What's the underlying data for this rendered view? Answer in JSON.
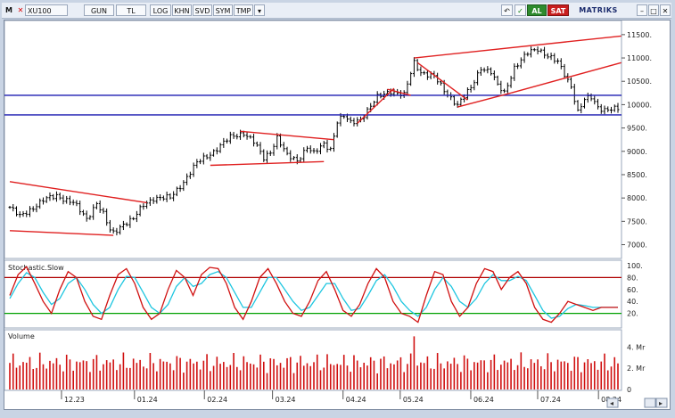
{
  "toolbar": {
    "menu_label": "M",
    "symbol": "XU100",
    "period": "GUN",
    "currency": "TL",
    "scale_btn": "LOG",
    "buttons": [
      "KHN",
      "SVD",
      "SYM",
      "TMP"
    ],
    "buy_label": "AL",
    "sell_label": "SAT",
    "brand": "MATRIKS"
  },
  "colors": {
    "price": "#000000",
    "trendline": "#e02020",
    "level": "#1a1ab0",
    "stoch_k": "#d01010",
    "stoch_d": "#1ec6e0",
    "stoch_upper": "#b00000",
    "stoch_lower": "#00a000",
    "volume": "#d01010"
  },
  "chart_data": [
    {
      "type": "ohlc",
      "panel": "price",
      "x_labels": [
        "12.23",
        "01.24",
        "02.24",
        "03.24",
        "04.24",
        "05.24",
        "06.24",
        "07.24",
        "08.24"
      ],
      "y_ticks": [
        7000,
        7500,
        8000,
        8500,
        9000,
        9500,
        10000,
        10500,
        11000,
        11500
      ],
      "y_tick_labels": [
        "7000.",
        "7500.",
        "8000.",
        "8500.",
        "9000.",
        "9500.",
        "10000.",
        "10500.",
        "11000.",
        "11500."
      ],
      "ylim": [
        6800,
        11650
      ],
      "bar_count": 183,
      "close_anchors": [
        {
          "bar": 0,
          "close": 7800
        },
        {
          "bar": 3,
          "close": 7600
        },
        {
          "bar": 10,
          "close": 7950
        },
        {
          "bar": 14,
          "close": 8050
        },
        {
          "bar": 19,
          "close": 7900
        },
        {
          "bar": 23,
          "close": 7550
        },
        {
          "bar": 26,
          "close": 7900
        },
        {
          "bar": 28,
          "close": 7650
        },
        {
          "bar": 30,
          "close": 7300
        },
        {
          "bar": 31,
          "close": 7250
        },
        {
          "bar": 34,
          "close": 7450
        },
        {
          "bar": 37,
          "close": 7550
        },
        {
          "bar": 40,
          "close": 7850
        },
        {
          "bar": 43,
          "close": 8000
        },
        {
          "bar": 48,
          "close": 8000
        },
        {
          "bar": 52,
          "close": 8350
        },
        {
          "bar": 56,
          "close": 8750
        },
        {
          "bar": 61,
          "close": 9000
        },
        {
          "bar": 66,
          "close": 9300
        },
        {
          "bar": 70,
          "close": 9400
        },
        {
          "bar": 73,
          "close": 9200
        },
        {
          "bar": 76,
          "close": 8850
        },
        {
          "bar": 78,
          "close": 9000
        },
        {
          "bar": 80,
          "close": 9300
        },
        {
          "bar": 83,
          "close": 8900
        },
        {
          "bar": 86,
          "close": 8800
        },
        {
          "bar": 89,
          "close": 9100
        },
        {
          "bar": 91,
          "close": 8950
        },
        {
          "bar": 94,
          "close": 9150
        },
        {
          "bar": 96,
          "close": 9050
        },
        {
          "bar": 98,
          "close": 9650
        },
        {
          "bar": 100,
          "close": 9750
        },
        {
          "bar": 102,
          "close": 9600
        },
        {
          "bar": 105,
          "close": 9700
        },
        {
          "bar": 110,
          "close": 10150
        },
        {
          "bar": 114,
          "close": 10300
        },
        {
          "bar": 118,
          "close": 10200
        },
        {
          "bar": 121,
          "close": 10900
        },
        {
          "bar": 123,
          "close": 10700
        },
        {
          "bar": 127,
          "close": 10600
        },
        {
          "bar": 130,
          "close": 10300
        },
        {
          "bar": 134,
          "close": 10000
        },
        {
          "bar": 138,
          "close": 10350
        },
        {
          "bar": 141,
          "close": 10800
        },
        {
          "bar": 144,
          "close": 10700
        },
        {
          "bar": 146,
          "close": 10400
        },
        {
          "bar": 148,
          "close": 10250
        },
        {
          "bar": 151,
          "close": 10800
        },
        {
          "bar": 155,
          "close": 11100
        },
        {
          "bar": 158,
          "close": 11200
        },
        {
          "bar": 161,
          "close": 11050
        },
        {
          "bar": 164,
          "close": 10900
        },
        {
          "bar": 166,
          "close": 10650
        },
        {
          "bar": 168,
          "close": 10400
        },
        {
          "bar": 170,
          "close": 9850
        },
        {
          "bar": 172,
          "close": 10100
        },
        {
          "bar": 174,
          "close": 10150
        },
        {
          "bar": 176,
          "close": 9950
        },
        {
          "bar": 178,
          "close": 9900
        },
        {
          "bar": 182,
          "close": 9900
        }
      ],
      "horizontal_levels": [
        10200,
        9780
      ],
      "trendlines": [
        {
          "from": {
            "bar": 0,
            "value": 8350
          },
          "to": {
            "bar": 41,
            "value": 7900
          }
        },
        {
          "from": {
            "bar": 0,
            "value": 7300
          },
          "to": {
            "bar": 31,
            "value": 7200
          }
        },
        {
          "from": {
            "bar": 60,
            "value": 8700
          },
          "to": {
            "bar": 94,
            "value": 8780
          }
        },
        {
          "from": {
            "bar": 69,
            "value": 9430
          },
          "to": {
            "bar": 97,
            "value": 9250
          }
        },
        {
          "from": {
            "bar": 104,
            "value": 9600
          },
          "to": {
            "bar": 115,
            "value": 10350
          }
        },
        {
          "from": {
            "bar": 113,
            "value": 10330
          },
          "to": {
            "bar": 120,
            "value": 10200
          }
        },
        {
          "from": {
            "bar": 121,
            "value": 11000
          },
          "to": {
            "bar": 183,
            "value": 11470
          }
        },
        {
          "from": {
            "bar": 134,
            "value": 9950
          },
          "to": {
            "bar": 150,
            "value": 10250
          }
        },
        {
          "from": {
            "bar": 150,
            "value": 10250
          },
          "to": {
            "bar": 183,
            "value": 10900
          }
        },
        {
          "from": {
            "bar": 122,
            "value": 10900
          },
          "to": {
            "bar": 137,
            "value": 10100
          }
        }
      ]
    },
    {
      "type": "line",
      "panel": "stochastic",
      "title": "Stochastic.Slow",
      "y_ticks": [
        20,
        40,
        60,
        80,
        100
      ],
      "y_tick_labels": [
        "20.",
        "40.",
        "60.",
        "80.",
        "100."
      ],
      "ylim": [
        0,
        100
      ],
      "reference_lines": [
        80,
        20
      ],
      "series": [
        {
          "values": [
            50,
            85,
            98,
            70,
            40,
            20,
            60,
            90,
            80,
            40,
            15,
            10,
            50,
            85,
            95,
            70,
            30,
            10,
            20,
            60,
            92,
            80,
            50,
            85,
            97,
            95,
            70,
            30,
            10,
            40,
            80,
            95,
            70,
            40,
            20,
            15,
            40,
            75,
            90,
            60,
            25,
            15,
            35,
            70,
            95,
            80,
            40,
            20,
            15,
            5,
            50,
            90,
            85,
            40,
            15,
            30,
            70,
            95,
            90,
            60,
            80,
            90,
            70,
            30,
            10,
            5,
            20,
            40,
            35,
            30,
            25,
            30,
            30,
            30
          ]
        },
        {
          "values": [
            45,
            70,
            88,
            80,
            55,
            35,
            45,
            70,
            80,
            60,
            35,
            20,
            30,
            60,
            82,
            80,
            55,
            30,
            20,
            35,
            65,
            80,
            65,
            70,
            85,
            90,
            80,
            55,
            30,
            30,
            55,
            80,
            80,
            60,
            40,
            25,
            30,
            50,
            70,
            70,
            45,
            25,
            28,
            50,
            75,
            85,
            65,
            40,
            25,
            15,
            30,
            60,
            80,
            65,
            40,
            30,
            45,
            70,
            85,
            75,
            75,
            82,
            75,
            50,
            25,
            12,
            15,
            28,
            35,
            33,
            30,
            30,
            30,
            30
          ]
        }
      ]
    },
    {
      "type": "bar",
      "panel": "volume",
      "title": "Volume",
      "y_ticks": [
        0,
        2,
        4
      ],
      "y_tick_labels": [
        "0",
        "2. Mr",
        "4. Mr"
      ],
      "ylim": [
        0,
        5.2
      ],
      "bar_count": 183,
      "spikes": [
        {
          "bar": 121,
          "value": 5.0
        }
      ],
      "typical_range": [
        1.5,
        3.5
      ]
    }
  ]
}
